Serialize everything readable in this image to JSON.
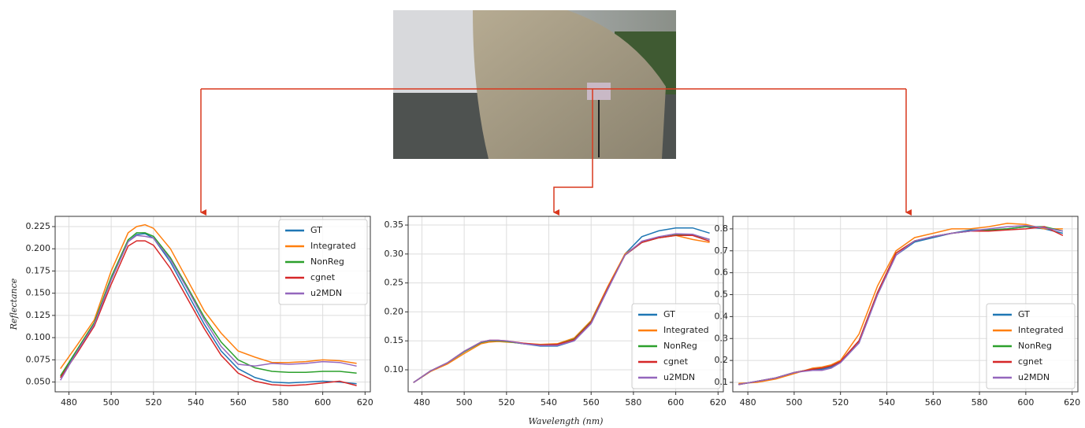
{
  "chart_data": [
    {
      "type": "line",
      "ylabel": "Reflectance",
      "legend": "upper right",
      "grid": true,
      "xlim": [
        473.5,
        622.5
      ],
      "xticks": [
        480,
        500,
        520,
        540,
        560,
        580,
        600,
        620
      ],
      "ylim": [
        0.039,
        0.2365
      ],
      "yticks": [
        {
          "value": 0.05,
          "label": "0.050"
        },
        {
          "value": 0.075,
          "label": "0.075"
        },
        {
          "value": 0.1,
          "label": "0.100"
        },
        {
          "value": 0.125,
          "label": "0.125"
        },
        {
          "value": 0.15,
          "label": "0.150"
        },
        {
          "value": 0.175,
          "label": "0.175"
        },
        {
          "value": 0.2,
          "label": "0.200"
        },
        0.225
      ],
      "x": [
        476,
        484,
        492,
        500,
        508,
        512,
        516,
        520,
        528,
        536,
        544,
        552,
        560,
        568,
        576,
        584,
        592,
        600,
        608,
        616
      ],
      "series": [
        {
          "name": "GT",
          "color": "#1f77b4",
          "values": [
            0.055,
            0.085,
            0.115,
            0.165,
            0.208,
            0.216,
            0.217,
            0.212,
            0.185,
            0.15,
            0.115,
            0.085,
            0.065,
            0.055,
            0.05,
            0.049,
            0.05,
            0.051,
            0.05,
            0.048
          ]
        },
        {
          "name": "Integrated",
          "color": "#ff7f0e",
          "values": [
            0.065,
            0.092,
            0.12,
            0.175,
            0.218,
            0.225,
            0.227,
            0.223,
            0.2,
            0.165,
            0.13,
            0.105,
            0.085,
            0.078,
            0.072,
            0.072,
            0.073,
            0.075,
            0.074,
            0.071
          ]
        },
        {
          "name": "NonReg",
          "color": "#2ca02c",
          "values": [
            0.057,
            0.087,
            0.117,
            0.168,
            0.21,
            0.218,
            0.218,
            0.214,
            0.19,
            0.157,
            0.123,
            0.095,
            0.075,
            0.066,
            0.062,
            0.061,
            0.061,
            0.062,
            0.062,
            0.06
          ]
        },
        {
          "name": "cgnet",
          "color": "#d62728",
          "values": [
            0.055,
            0.083,
            0.113,
            0.16,
            0.203,
            0.209,
            0.209,
            0.204,
            0.178,
            0.144,
            0.11,
            0.08,
            0.06,
            0.051,
            0.047,
            0.046,
            0.047,
            0.049,
            0.051,
            0.046
          ]
        },
        {
          "name": "u2MDN",
          "color": "#9467bd",
          "values": [
            0.052,
            0.085,
            0.115,
            0.165,
            0.208,
            0.215,
            0.214,
            0.212,
            0.188,
            0.155,
            0.12,
            0.09,
            0.07,
            0.068,
            0.071,
            0.07,
            0.071,
            0.073,
            0.072,
            0.068
          ]
        }
      ]
    },
    {
      "type": "line",
      "xlabel": "Wavelength (nm)",
      "legend": "lower right",
      "grid": true,
      "xlim": [
        473.5,
        622.5
      ],
      "xticks": [
        480,
        500,
        520,
        540,
        560,
        580,
        600,
        620
      ],
      "ylim": [
        0.062,
        0.365
      ],
      "yticks": [
        {
          "value": 0.1,
          "label": "0.10"
        },
        0.15,
        {
          "value": 0.2,
          "label": "0.20"
        },
        0.25,
        {
          "value": 0.3,
          "label": "0.30"
        },
        0.35
      ],
      "x": [
        476,
        484,
        492,
        500,
        508,
        512,
        516,
        520,
        528,
        536,
        544,
        552,
        560,
        568,
        576,
        584,
        592,
        600,
        608,
        616
      ],
      "series": [
        {
          "name": "GT",
          "color": "#1f77b4",
          "values": [
            0.078,
            0.097,
            0.112,
            0.132,
            0.147,
            0.15,
            0.15,
            0.149,
            0.145,
            0.141,
            0.141,
            0.15,
            0.18,
            0.24,
            0.3,
            0.33,
            0.34,
            0.345,
            0.345,
            0.336
          ]
        },
        {
          "name": "Integrated",
          "color": "#ff7f0e",
          "values": [
            0.078,
            0.097,
            0.11,
            0.128,
            0.145,
            0.148,
            0.149,
            0.148,
            0.146,
            0.144,
            0.145,
            0.155,
            0.185,
            0.245,
            0.3,
            0.32,
            0.328,
            0.332,
            0.325,
            0.32
          ]
        },
        {
          "name": "NonReg",
          "color": "#2ca02c",
          "values": [
            0.078,
            0.098,
            0.112,
            0.131,
            0.147,
            0.15,
            0.15,
            0.149,
            0.145,
            0.143,
            0.144,
            0.153,
            0.183,
            0.242,
            0.298,
            0.32,
            0.328,
            0.333,
            0.333,
            0.325
          ]
        },
        {
          "name": "cgnet",
          "color": "#d62728",
          "values": [
            0.078,
            0.098,
            0.112,
            0.132,
            0.148,
            0.151,
            0.151,
            0.15,
            0.146,
            0.143,
            0.144,
            0.152,
            0.182,
            0.242,
            0.298,
            0.32,
            0.328,
            0.332,
            0.332,
            0.322
          ]
        },
        {
          "name": "u2MDN",
          "color": "#9467bd",
          "values": [
            0.078,
            0.098,
            0.112,
            0.132,
            0.148,
            0.151,
            0.151,
            0.15,
            0.145,
            0.142,
            0.142,
            0.15,
            0.18,
            0.24,
            0.298,
            0.322,
            0.33,
            0.335,
            0.334,
            0.325
          ]
        }
      ]
    },
    {
      "type": "line",
      "legend": "lower right",
      "grid": true,
      "xlim": [
        473.5,
        622.5
      ],
      "xticks": [
        480,
        500,
        520,
        540,
        560,
        580,
        600,
        620
      ],
      "ylim": [
        0.057,
        0.857
      ],
      "yticks": [
        0.1,
        0.2,
        0.3,
        0.4,
        0.5,
        0.6,
        0.7,
        0.8
      ],
      "x": [
        476,
        484,
        492,
        500,
        508,
        512,
        516,
        520,
        528,
        536,
        544,
        552,
        560,
        568,
        576,
        584,
        592,
        600,
        608,
        616
      ],
      "series": [
        {
          "name": "GT",
          "color": "#1f77b4",
          "values": [
            0.09,
            0.105,
            0.12,
            0.145,
            0.16,
            0.16,
            0.17,
            0.19,
            0.28,
            0.5,
            0.68,
            0.74,
            0.76,
            0.78,
            0.795,
            0.795,
            0.8,
            0.81,
            0.8,
            0.78
          ]
        },
        {
          "name": "Integrated",
          "color": "#ff7f0e",
          "values": [
            0.095,
            0.1,
            0.115,
            0.14,
            0.165,
            0.17,
            0.18,
            0.2,
            0.32,
            0.54,
            0.7,
            0.76,
            0.78,
            0.8,
            0.8,
            0.81,
            0.825,
            0.82,
            0.8,
            0.8
          ]
        },
        {
          "name": "NonReg",
          "color": "#2ca02c",
          "values": [
            0.09,
            0.105,
            0.12,
            0.145,
            0.16,
            0.165,
            0.175,
            0.195,
            0.29,
            0.51,
            0.69,
            0.745,
            0.765,
            0.78,
            0.79,
            0.795,
            0.8,
            0.81,
            0.81,
            0.79
          ]
        },
        {
          "name": "cgnet",
          "color": "#d62728",
          "values": [
            0.09,
            0.105,
            0.12,
            0.145,
            0.16,
            0.165,
            0.175,
            0.195,
            0.29,
            0.51,
            0.69,
            0.745,
            0.765,
            0.78,
            0.79,
            0.79,
            0.795,
            0.8,
            0.81,
            0.77
          ]
        },
        {
          "name": "u2MDN",
          "color": "#9467bd",
          "values": [
            0.09,
            0.105,
            0.12,
            0.145,
            0.155,
            0.155,
            0.165,
            0.19,
            0.28,
            0.5,
            0.68,
            0.745,
            0.765,
            0.78,
            0.79,
            0.8,
            0.81,
            0.815,
            0.805,
            0.79
          ]
        }
      ]
    }
  ]
}
